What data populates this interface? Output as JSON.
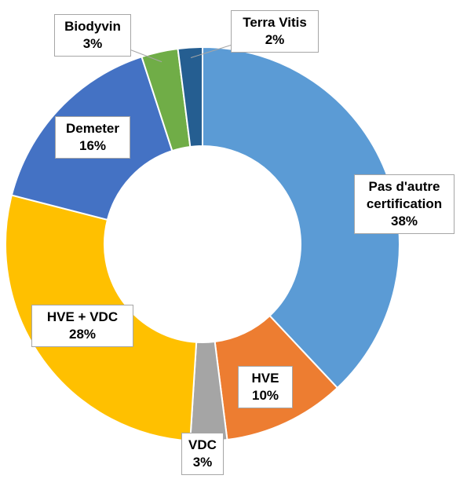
{
  "chart_data": {
    "type": "donut",
    "categories": [
      "Pas d'autre certification",
      "HVE",
      "VDC",
      "HVE + VDC",
      "Demeter",
      "Biodyvin",
      "Terra Vitis"
    ],
    "values": [
      38,
      10,
      3,
      28,
      16,
      3,
      2
    ],
    "value_labels": [
      "38%",
      "10%",
      "3%",
      "28%",
      "16%",
      "3%",
      "2%"
    ],
    "colors": [
      "#5b9bd5",
      "#ed7d31",
      "#a5a5a5",
      "#ffc000",
      "#4472c4",
      "#70ad47",
      "#255e91"
    ]
  }
}
